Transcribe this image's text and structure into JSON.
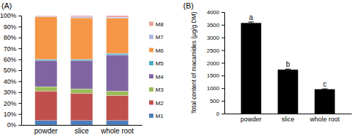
{
  "chart_data": [
    {
      "type": "bar",
      "title": "(A)",
      "stacked": true,
      "legend": "right",
      "categories": [
        "powder",
        "slice",
        "whole root"
      ],
      "series": [
        {
          "name": "M1",
          "color": "#4a7ebb",
          "values": [
            4,
            4,
            4
          ]
        },
        {
          "name": "M2",
          "color": "#c0504d",
          "values": [
            27,
            25,
            23
          ]
        },
        {
          "name": "M3",
          "color": "#9bbb59",
          "values": [
            4,
            4,
            4
          ]
        },
        {
          "name": "M4",
          "color": "#8064a2",
          "values": [
            24,
            26,
            33
          ]
        },
        {
          "name": "M5",
          "color": "#4bacc6",
          "values": [
            1,
            1,
            1.5
          ]
        },
        {
          "name": "M6",
          "color": "#f79646",
          "values": [
            39,
            38,
            32
          ]
        },
        {
          "name": "M7",
          "color": "#a9b8e0",
          "values": [
            0.5,
            1,
            1
          ]
        },
        {
          "name": "M8",
          "color": "#e6a3a1",
          "values": [
            0.5,
            1,
            1.5
          ]
        }
      ],
      "ylim": [
        0,
        100
      ],
      "yticks": [
        {
          "value": 0,
          "label": "0%"
        },
        {
          "value": 10,
          "label": "10%"
        },
        {
          "value": 20,
          "label": "20%"
        },
        {
          "value": 30,
          "label": "30%"
        },
        {
          "value": 40,
          "label": "40%"
        },
        {
          "value": 50,
          "label": "50%"
        },
        {
          "value": 60,
          "label": "60%"
        },
        {
          "value": 70,
          "label": "70%"
        },
        {
          "value": 80,
          "label": "80%"
        },
        {
          "value": 90,
          "label": "90%"
        },
        {
          "value": 100,
          "label": "100%"
        }
      ]
    },
    {
      "type": "bar",
      "title": "(B)",
      "ylabel": "Total content of macamides (μg/g DM)",
      "categories": [
        "powder",
        "slice",
        "whole root"
      ],
      "values": [
        3570,
        1730,
        960
      ],
      "errors": [
        40,
        25,
        15
      ],
      "annotations": [
        "a",
        "b",
        "c"
      ],
      "color": "#000000",
      "ylim": [
        0,
        4000
      ],
      "yticks": [
        0,
        500,
        1000,
        1500,
        2000,
        2500,
        3000,
        3500,
        4000
      ]
    }
  ]
}
